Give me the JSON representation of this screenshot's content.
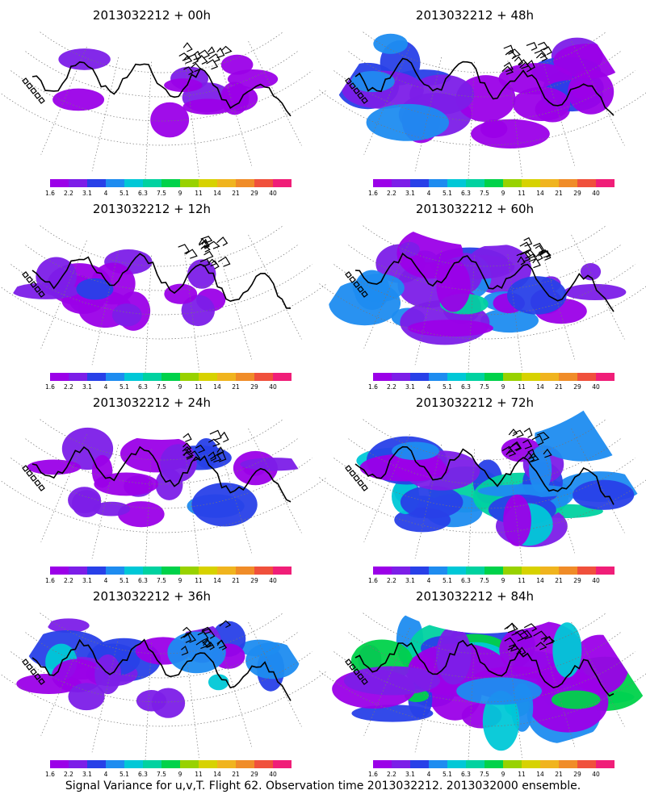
{
  "chart_data": {
    "type": "heatmap",
    "footer": "Signal Variance for u,v,T. Flight 62. Observation time 2013032212. 2013032000 ensemble.",
    "colorbar": {
      "labels": [
        "1.6",
        "2.2",
        "3.1",
        "4",
        "5.1",
        "6.3",
        "7.5",
        "9",
        "11",
        "14",
        "21",
        "29",
        "40"
      ],
      "colors": [
        "#9b00e8",
        "#7c1ee8",
        "#2840e8",
        "#1e8cf0",
        "#00c8d7",
        "#00d2a0",
        "#00d24a",
        "#98d200",
        "#d7d200",
        "#f0b41e",
        "#f08c28",
        "#f0503c",
        "#f01e78"
      ]
    },
    "panels": [
      {
        "title": "2013032212 + 00h",
        "intensity": 0.12
      },
      {
        "title": "2013032212 + 48h",
        "intensity": 0.45
      },
      {
        "title": "2013032212 + 12h",
        "intensity": 0.22
      },
      {
        "title": "2013032212 + 60h",
        "intensity": 0.55
      },
      {
        "title": "2013032212 + 24h",
        "intensity": 0.32
      },
      {
        "title": "2013032212 + 72h",
        "intensity": 0.65
      },
      {
        "title": "2013032212 + 36h",
        "intensity": 0.4
      },
      {
        "title": "2013032212 + 84h",
        "intensity": 0.78
      }
    ]
  }
}
